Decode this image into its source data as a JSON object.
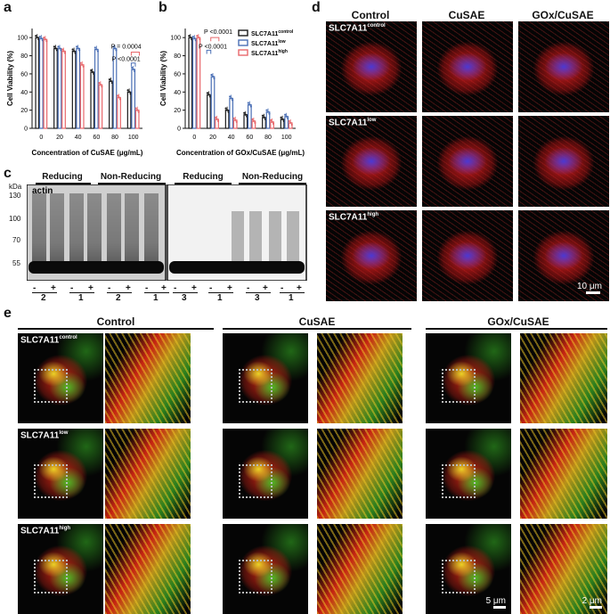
{
  "panel_labels": {
    "a": "a",
    "b": "b",
    "c": "c",
    "d": "d",
    "e": "e"
  },
  "chart_data": [
    {
      "type": "bar",
      "panel": "a",
      "xlabel": "Concentration of CuSAE (μg/mL)",
      "ylabel": "Cell Viability (%)",
      "categories": [
        "0",
        "20",
        "40",
        "60",
        "80",
        "100"
      ],
      "yticks": [
        "0",
        "20",
        "40",
        "60",
        "80",
        "100"
      ],
      "ylim": [
        0,
        110
      ],
      "series": [
        {
          "name": "SLC7A11control",
          "color": "#1a1a1a",
          "values": [
            100,
            88,
            85,
            62,
            52,
            40
          ]
        },
        {
          "name": "SLC7A11low",
          "color": "#4a6fb5",
          "values": [
            99,
            88,
            88,
            87,
            88,
            65
          ]
        },
        {
          "name": "SLC7A11high",
          "color": "#e8686b",
          "values": [
            98,
            85,
            70,
            48,
            34,
            20
          ]
        }
      ],
      "annotations": [
        "P = 0.0004",
        "P <0.0001"
      ]
    },
    {
      "type": "bar",
      "panel": "b",
      "xlabel": "Concentration of GOx/CuSAE (μg/mL)",
      "ylabel": "Cell Viability (%)",
      "categories": [
        "0",
        "20",
        "40",
        "60",
        "80",
        "100"
      ],
      "yticks": [
        "0",
        "20",
        "40",
        "60",
        "80",
        "100"
      ],
      "ylim": [
        0,
        110
      ],
      "series": [
        {
          "name": "SLC7A11control",
          "color": "#1a1a1a",
          "values": [
            100,
            37,
            20,
            15,
            12,
            10
          ]
        },
        {
          "name": "SLC7A11low",
          "color": "#4a6fb5",
          "values": [
            99,
            57,
            33,
            26,
            18,
            13
          ]
        },
        {
          "name": "SLC7A11high",
          "color": "#e8686b",
          "values": [
            100,
            10,
            9,
            8,
            7,
            6
          ]
        }
      ],
      "annotations": [
        "P <0.0001",
        "P <0.0001"
      ],
      "legend": [
        {
          "base": "SLC7A11",
          "sup": "control"
        },
        {
          "base": "SLC7A11",
          "sup": "low"
        },
        {
          "base": "SLC7A11",
          "sup": "high"
        }
      ]
    }
  ],
  "gel": {
    "headers": [
      "Reducing",
      "Non-Reducing",
      "Reducing",
      "Non-Reducing"
    ],
    "unit": "kDa",
    "markers": [
      "130",
      "100",
      "70",
      "55"
    ],
    "actin": "actin",
    "signs": [
      "-",
      "+",
      "-",
      "+",
      "-",
      "+",
      "-",
      "+",
      "-",
      "+",
      "-",
      "+",
      "-",
      "+",
      "-",
      "+"
    ],
    "numbers": [
      "2",
      "1",
      "2",
      "1",
      "3",
      "1",
      "3",
      "1"
    ]
  },
  "panel_d": {
    "columns": [
      "Control",
      "CuSAE",
      "GOx/CuSAE"
    ],
    "rows": [
      {
        "base": "SLC7A11",
        "sup": "control"
      },
      {
        "base": "SLC7A11",
        "sup": "low"
      },
      {
        "base": "SLC7A11",
        "sup": "high"
      }
    ],
    "scalebar": "10 μm"
  },
  "panel_e": {
    "groups": [
      "Control",
      "CuSAE",
      "GOx/CuSAE"
    ],
    "rows": [
      {
        "base": "SLC7A11",
        "sup": "control"
      },
      {
        "base": "SLC7A11",
        "sup": "low"
      },
      {
        "base": "SLC7A11",
        "sup": "high"
      }
    ],
    "scalebar_main": "5 μm",
    "scalebar_zoom": "2 μm"
  }
}
